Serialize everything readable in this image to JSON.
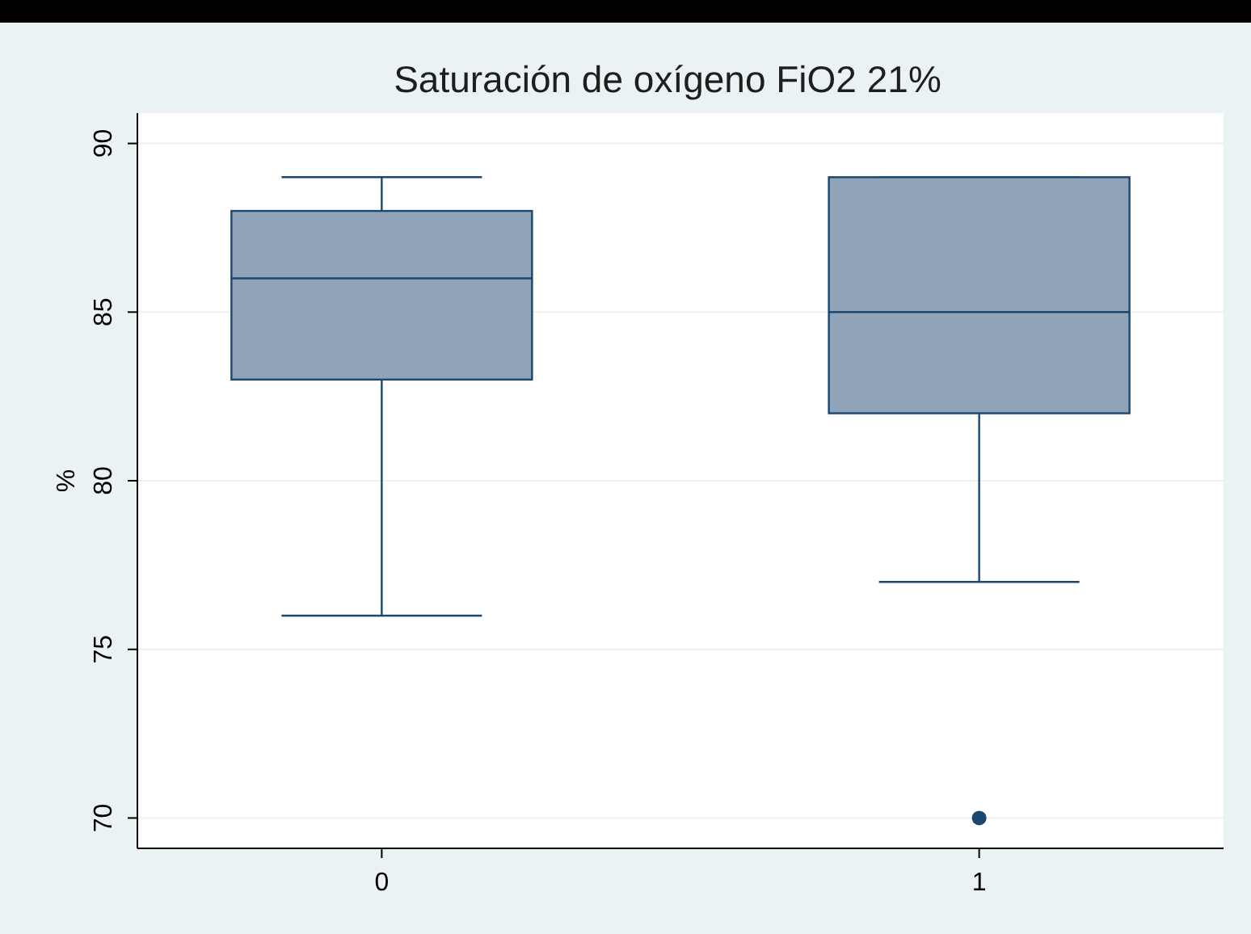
{
  "chart_data": {
    "type": "box",
    "title": "Saturación de oxígeno FiO2 21%",
    "ylabel": "%",
    "categories": [
      "0",
      "1"
    ],
    "color": "#8fa4b8",
    "boxes": [
      {
        "low": 76,
        "q1": 83,
        "median": 86,
        "q3": 88,
        "high": 89
      },
      {
        "low": 77,
        "q1": 82,
        "median": 85,
        "q3": 89,
        "high": 89,
        "outliers": [
          70
        ]
      }
    ],
    "ylim": [
      69.1,
      90.9
    ],
    "yticks": [
      70,
      75,
      80,
      85,
      90
    ],
    "grid": "y"
  }
}
